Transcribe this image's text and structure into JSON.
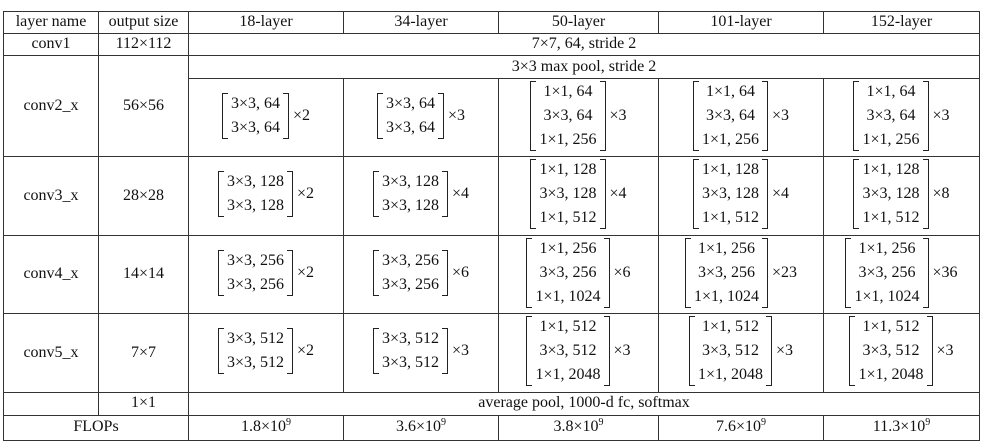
{
  "headers": [
    "layer name",
    "output size",
    "18-layer",
    "34-layer",
    "50-layer",
    "101-layer",
    "152-layer"
  ],
  "conv1": {
    "name": "conv1",
    "size": "112×112",
    "desc": "7×7, 64, stride 2"
  },
  "pool": {
    "desc": "3×3 max pool, stride 2"
  },
  "stages": [
    {
      "name": "conv2_x",
      "size": "56×56",
      "cells": [
        {
          "lines": [
            "3×3, 64",
            "3×3, 64"
          ],
          "mult": "×2"
        },
        {
          "lines": [
            "3×3, 64",
            "3×3, 64"
          ],
          "mult": "×3"
        },
        {
          "lines": [
            "1×1, 64",
            "3×3, 64",
            "1×1, 256"
          ],
          "mult": "×3"
        },
        {
          "lines": [
            "1×1, 64",
            "3×3, 64",
            "1×1, 256"
          ],
          "mult": "×3"
        },
        {
          "lines": [
            "1×1, 64",
            "3×3, 64",
            "1×1, 256"
          ],
          "mult": "×3"
        }
      ]
    },
    {
      "name": "conv3_x",
      "size": "28×28",
      "cells": [
        {
          "lines": [
            "3×3, 128",
            "3×3, 128"
          ],
          "mult": "×2"
        },
        {
          "lines": [
            "3×3, 128",
            "3×3, 128"
          ],
          "mult": "×4"
        },
        {
          "lines": [
            "1×1, 128",
            "3×3, 128",
            "1×1, 512"
          ],
          "mult": "×4"
        },
        {
          "lines": [
            "1×1, 128",
            "3×3, 128",
            "1×1, 512"
          ],
          "mult": "×4"
        },
        {
          "lines": [
            "1×1, 128",
            "3×3, 128",
            "1×1, 512"
          ],
          "mult": "×8"
        }
      ]
    },
    {
      "name": "conv4_x",
      "size": "14×14",
      "cells": [
        {
          "lines": [
            "3×3, 256",
            "3×3, 256"
          ],
          "mult": "×2"
        },
        {
          "lines": [
            "3×3, 256",
            "3×3, 256"
          ],
          "mult": "×6"
        },
        {
          "lines": [
            "1×1, 256",
            "3×3, 256",
            "1×1, 1024"
          ],
          "mult": "×6"
        },
        {
          "lines": [
            "1×1, 256",
            "3×3, 256",
            "1×1, 1024"
          ],
          "mult": "×23"
        },
        {
          "lines": [
            "1×1, 256",
            "3×3, 256",
            "1×1, 1024"
          ],
          "mult": "×36"
        }
      ]
    },
    {
      "name": "conv5_x",
      "size": "7×7",
      "cells": [
        {
          "lines": [
            "3×3, 512",
            "3×3, 512"
          ],
          "mult": "×2"
        },
        {
          "lines": [
            "3×3, 512",
            "3×3, 512"
          ],
          "mult": "×3"
        },
        {
          "lines": [
            "1×1, 512",
            "3×3, 512",
            "1×1, 2048"
          ],
          "mult": "×3"
        },
        {
          "lines": [
            "1×1, 512",
            "3×3, 512",
            "1×1, 2048"
          ],
          "mult": "×3"
        },
        {
          "lines": [
            "1×1, 512",
            "3×3, 512",
            "1×1, 2048"
          ],
          "mult": "×3"
        }
      ]
    }
  ],
  "final": {
    "size": "1×1",
    "desc": "average pool, 1000-d fc, softmax"
  },
  "flops": {
    "label": "FLOPs",
    "mantissas": [
      "1.8",
      "3.6",
      "3.8",
      "7.6",
      "11.3"
    ],
    "base": "×10",
    "exp": "9"
  }
}
